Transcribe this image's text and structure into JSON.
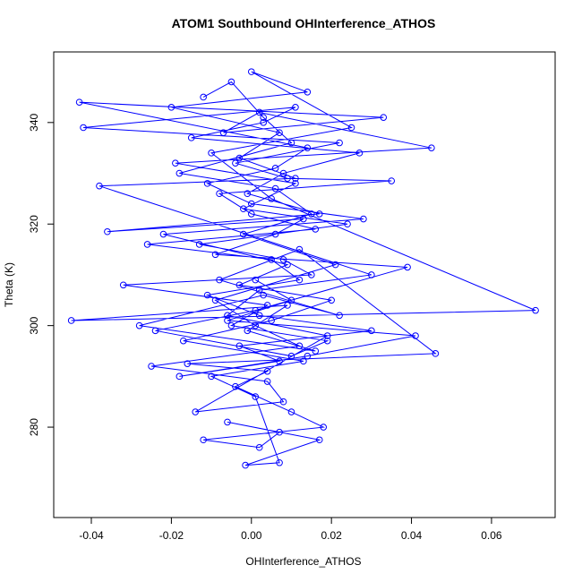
{
  "chart_data": {
    "type": "line",
    "title": "ATOM1 Southbound OHInterference_ATHOS",
    "x_label": "OHInterference_ATHOS",
    "y_label": "Theta (K)",
    "color": "#0000ff",
    "markers": true,
    "xlim": [
      -0.0494,
      0.0759
    ],
    "ylim": [
      262.2,
      353.9
    ],
    "xticks": [
      -0.04,
      -0.02,
      {
        "value": 0,
        "label": "0.00"
      },
      0.02,
      0.04,
      0.06
    ],
    "yticks": [
      280,
      300,
      320,
      340
    ],
    "x": [
      -0.012,
      -0.005,
      0.003,
      0.01,
      -0.018,
      0.006,
      0.015,
      -0.002,
      0.021,
      -0.009,
      0.001,
      0.012,
      -0.025,
      0.004,
      0.008,
      -0.014,
      0.019,
      -0.006,
      0.002,
      0.03,
      -0.038,
      0.011,
      -0.003,
      0.007,
      -0.02,
      0.014,
      0.0,
      0.025,
      -0.01,
      0.005,
      0.071,
      -0.045,
      0.009,
      -0.001,
      0.016,
      -0.028,
      0.003,
      0.022,
      -0.008,
      0.012,
      0.046,
      -0.016,
      0.004,
      -0.004,
      0.01,
      0.018,
      -0.012,
      0.002,
      0.007,
      -0.006,
      0.017,
      -0.0015,
      0.007,
      0.001,
      -0.01,
      0.013,
      -0.017,
      0.005,
      0.02,
      -0.003,
      0.009,
      -0.022,
      0.028,
      0.0,
      -0.011,
      0.006,
      0.014,
      -0.043,
      0.033,
      -0.007,
      0.002,
      0.045,
      -0.019,
      0.011,
      -0.002,
      0.024,
      -0.013,
      0.008,
      0.015,
      -0.032,
      0.004,
      -0.005,
      0.019,
      0.01,
      -0.024,
      0.001,
      0.039,
      -0.009,
      0.006,
      0.013,
      -0.036,
      0.017,
      -0.001,
      0.008,
      0.027,
      -0.015,
      0.003,
      0.011,
      -0.042,
      0.022,
      -0.004,
      0.009,
      0.035,
      -0.008,
      0.0,
      0.016,
      -0.026,
      0.005,
      0.012,
      -0.011,
      0.002,
      0.03,
      -0.003,
      0.007,
      -0.018,
      0.014,
      0.041,
      -0.006,
      0.01,
      0.001
    ],
    "values": [
      345,
      348,
      341,
      336,
      330,
      327,
      322,
      318,
      312,
      305,
      300,
      296,
      292,
      289,
      285,
      283,
      298,
      302,
      307,
      310,
      327.5,
      329,
      333,
      338,
      343,
      346,
      350,
      339,
      334,
      325,
      303,
      301,
      304,
      299,
      295,
      300,
      306,
      302,
      309,
      315,
      294.5,
      292.5,
      291,
      288,
      283,
      280,
      277.5,
      276,
      279,
      281,
      277.5,
      272.5,
      273,
      286,
      290,
      293,
      297,
      301,
      305,
      308,
      312,
      318,
      321,
      324,
      328,
      331,
      335,
      344,
      341,
      338,
      342,
      335,
      332,
      328,
      323,
      320,
      316,
      313,
      310,
      308,
      304,
      300,
      297,
      294,
      299,
      303,
      311.5,
      314,
      318,
      321,
      318.5,
      322,
      326,
      330,
      334,
      337,
      340,
      343,
      339,
      336,
      332,
      329,
      328.5,
      326,
      322,
      319,
      316,
      313,
      309,
      306,
      302,
      299,
      296,
      293,
      290,
      294,
      298,
      301,
      305,
      309
    ]
  }
}
